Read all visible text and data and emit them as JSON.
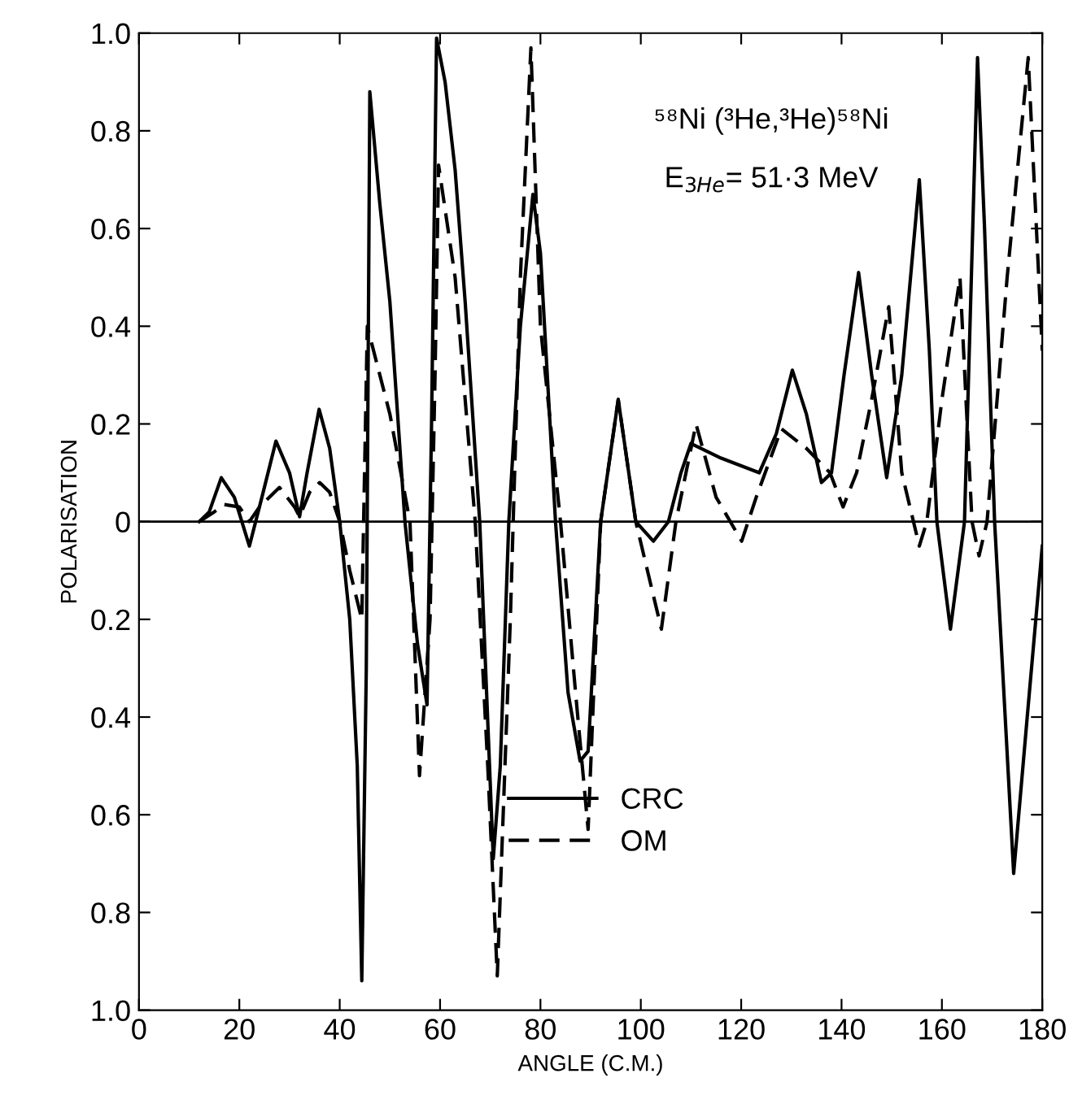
{
  "chart_data": {
    "type": "line",
    "xlabel": "ANGLE (C.M.)",
    "ylabel": "POLARISATION",
    "annotations": [
      "⁵⁸Ni (³He,³He)⁵⁸Ni",
      "E$_{3He}$= 51·3 MeV"
    ],
    "xlim": [
      0,
      180
    ],
    "xticks": [
      0,
      20,
      40,
      60,
      80,
      100,
      120,
      140,
      160,
      180
    ],
    "ylim": [
      -1.0,
      1.0
    ],
    "yticks": [
      {
        "value": -1.0,
        "label": "1.0"
      },
      {
        "value": -0.8,
        "label": "0.8"
      },
      {
        "value": -0.6,
        "label": "0.6"
      },
      {
        "value": -0.4,
        "label": "0.4"
      },
      {
        "value": -0.2,
        "label": "0.2"
      },
      0,
      0.2,
      0.4,
      0.6,
      0.8,
      {
        "value": 1.0,
        "label": "1.0"
      }
    ],
    "ref_lines": [
      {
        "axis": "y",
        "value": 0,
        "color": "#000000",
        "line_style": "solid"
      }
    ],
    "legend": "bottom",
    "grid": false,
    "series": [
      {
        "name": "CRC",
        "color": "#000000",
        "line_style": "solid",
        "x": [
          12,
          14,
          16.4,
          19,
          22,
          24.5,
          27.3,
          30,
          32,
          33.5,
          35.9,
          38,
          40,
          42,
          43.5,
          44.4,
          45.3,
          46,
          48,
          50,
          53,
          55.5,
          57.4,
          58.3,
          59.3,
          61,
          63,
          65,
          67.9,
          70.6,
          72,
          73.7,
          76,
          78.5,
          80,
          83,
          85.5,
          87.9,
          89.5,
          92,
          95.5,
          99,
          102.5,
          105.5,
          108,
          110,
          116,
          123.6,
          127,
          130.2,
          133,
          136,
          138,
          140.5,
          143.4,
          146,
          149,
          152,
          155.5,
          157.5,
          159,
          161.7,
          164.5,
          167.1,
          168.5,
          170.5,
          174.3,
          177,
          180
        ],
        "values": [
          0,
          0.02,
          0.09,
          0.05,
          -0.05,
          0.05,
          0.165,
          0.1,
          0.01,
          0.1,
          0.23,
          0.15,
          0.0,
          -0.2,
          -0.5,
          -0.94,
          -0.3,
          0.88,
          0.65,
          0.45,
          0.0,
          -0.25,
          -0.375,
          0.2,
          0.99,
          0.9,
          0.72,
          0.45,
          0.0,
          -0.69,
          -0.5,
          0.0,
          0.4,
          0.67,
          0.55,
          0.0,
          -0.35,
          -0.49,
          -0.47,
          0.0,
          0.25,
          0.0,
          -0.04,
          0.0,
          0.1,
          0.16,
          0.13,
          0.1,
          0.18,
          0.31,
          0.22,
          0.08,
          0.1,
          0.3,
          0.51,
          0.3,
          0.09,
          0.3,
          0.7,
          0.35,
          0.0,
          -0.22,
          0.0,
          0.95,
          0.6,
          0.0,
          -0.72,
          -0.4,
          -0.05
        ]
      },
      {
        "name": "OM",
        "color": "#000000",
        "line_style": "dashed",
        "x": [
          12,
          15,
          17,
          20,
          22,
          24,
          28,
          31,
          32,
          34,
          36,
          38,
          40,
          42,
          44.4,
          45.5,
          48,
          50,
          54,
          55.9,
          58,
          59,
          59.7,
          63,
          67,
          69.5,
          71.4,
          74,
          76,
          78.1,
          80,
          84,
          87,
          89.5,
          92,
          95.5,
          99,
          104.1,
          107,
          111,
          115,
          120.1,
          123,
          128,
          133,
          137.7,
          140.3,
          143,
          146,
          149.4,
          152,
          155.5,
          157,
          160,
          163.6,
          166,
          167.4,
          169,
          173,
          177.2,
          180
        ],
        "values": [
          0,
          0.02,
          0.035,
          0.03,
          0.0,
          0.03,
          0.07,
          0.03,
          0.01,
          0.06,
          0.08,
          0.06,
          0.0,
          -0.1,
          -0.2,
          0.4,
          0.3,
          0.22,
          0.0,
          -0.52,
          -0.2,
          0.3,
          0.73,
          0.5,
          0.0,
          -0.5,
          -0.93,
          -0.2,
          0.5,
          0.97,
          0.4,
          0.0,
          -0.35,
          -0.63,
          0.0,
          0.25,
          0.0,
          -0.22,
          0.0,
          0.2,
          0.05,
          -0.04,
          0.05,
          0.19,
          0.15,
          0.1,
          0.03,
          0.1,
          0.25,
          0.44,
          0.1,
          -0.05,
          0.0,
          0.25,
          0.5,
          0.0,
          -0.07,
          0.0,
          0.5,
          0.95,
          0.35
        ]
      }
    ]
  }
}
